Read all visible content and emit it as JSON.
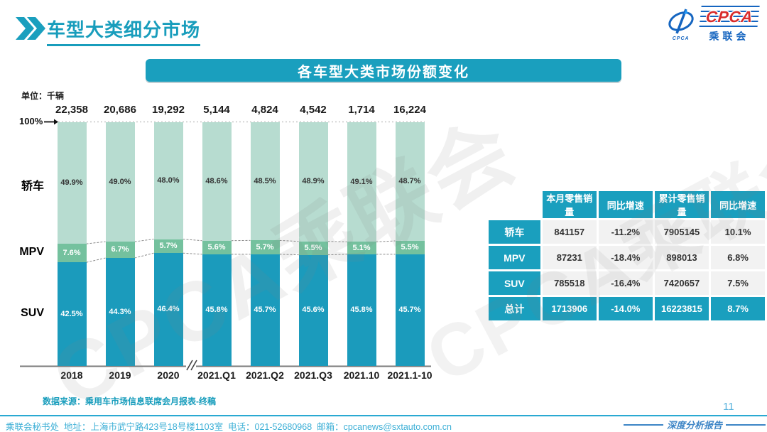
{
  "header": {
    "title": "车型大类细分市场",
    "logo": {
      "cpca": "CPCA",
      "org": "乘联会",
      "emblem_sub": "CPCA"
    }
  },
  "chart_data": {
    "type": "bar",
    "stacked": true,
    "title": "各车型大类市场份额变化",
    "unit_label": "单位：千辆",
    "axis_top_label": "100%",
    "value_suffix": "%",
    "categories": [
      "2018",
      "2019",
      "2020",
      "2021.Q1",
      "2021.Q2",
      "2021.Q3",
      "2021.10",
      "2021.1-10"
    ],
    "totals": [
      "22,358",
      "20,686",
      "19,292",
      "5,144",
      "4,824",
      "4,542",
      "1,714",
      "16,224"
    ],
    "series": [
      {
        "name": "轿车",
        "color": "#b7dcd0",
        "label_color": "#333333",
        "values": [
          49.9,
          49.0,
          48.0,
          48.6,
          48.5,
          48.9,
          49.1,
          48.7
        ]
      },
      {
        "name": "MPV",
        "color": "#74c19e",
        "label_color": "#ffffff",
        "values": [
          7.6,
          6.7,
          5.7,
          5.6,
          5.7,
          5.5,
          5.1,
          5.5
        ]
      },
      {
        "name": "SUV",
        "color": "#1b9bbc",
        "label_color": "#ffffff",
        "values": [
          42.5,
          44.3,
          46.4,
          45.8,
          45.7,
          45.6,
          45.8,
          45.7
        ]
      }
    ],
    "axis_break_after_index": 2,
    "ylim": [
      0,
      100
    ],
    "legend_position": "left-category-labels"
  },
  "table": {
    "headers": [
      "",
      "本月零售销量",
      "同比增速",
      "累计零售销量",
      "同比增速"
    ],
    "rows": [
      {
        "label": "轿车",
        "cells": [
          "841157",
          "-11.2%",
          "7905145",
          "10.1%"
        ],
        "is_total": false
      },
      {
        "label": "MPV",
        "cells": [
          "87231",
          "-18.4%",
          "898013",
          "6.8%"
        ],
        "is_total": false
      },
      {
        "label": "SUV",
        "cells": [
          "785518",
          "-16.4%",
          "7420657",
          "7.5%"
        ],
        "is_total": false
      },
      {
        "label": "总计",
        "cells": [
          "1713906",
          "-14.0%",
          "16223815",
          "8.7%"
        ],
        "is_total": true
      }
    ]
  },
  "source_note": "数据来源：乘用车市场信息联席会月报表-终稿",
  "footer": {
    "contact": "乘联会秘书处  地址：上海市武宁路423号18号楼1103室  电话：021-52680968  邮箱：cpcanews@sxtauto.com.cn",
    "report_label": "深度分析报告",
    "page_number": "11"
  },
  "watermark": "CPCA乘联会",
  "colors": {
    "accent_teal": "#1a9fbe",
    "title_teal": "#189dbc",
    "sedan_green": "#b7dcd0",
    "mpv_green": "#74c19e",
    "suv_teal": "#1b9bbc",
    "footer_blue": "#3cafd6",
    "logo_red": "#d92b2b",
    "logo_blue": "#1565c0"
  }
}
